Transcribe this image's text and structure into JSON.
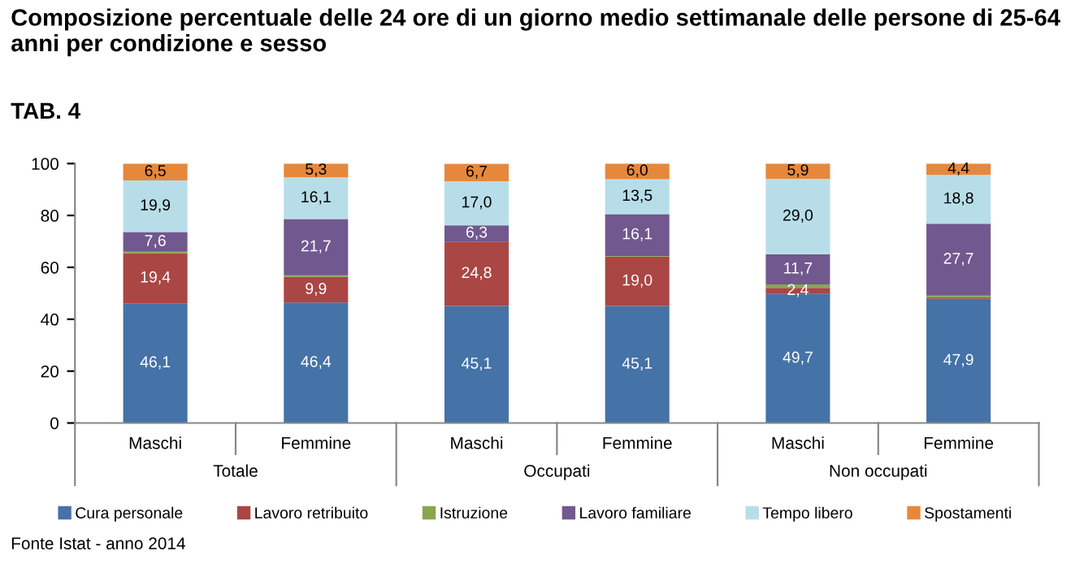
{
  "chart_data": {
    "type": "bar",
    "stacked": true,
    "title": "Composizione percentuale delle 24 ore di un giorno medio settimanale delle persone di 25-64 anni per condizione e sesso",
    "subtitle": "TAB. 4",
    "categories": [
      "Maschi",
      "Femmine",
      "Maschi",
      "Femmine",
      "Maschi",
      "Femmine"
    ],
    "series": [
      {
        "name": "Cura personale",
        "color": "#4572a7",
        "values": [
          46.1,
          46.4,
          45.1,
          45.1,
          49.7,
          47.9
        ],
        "value_labels": [
          "46,1",
          "46,4",
          "45,1",
          "45,1",
          "49,7",
          "47,9"
        ]
      },
      {
        "name": "Lavoro retribuito",
        "color": "#aa4643",
        "values": [
          19.4,
          9.9,
          24.8,
          19.0,
          2.4,
          0.6
        ],
        "value_labels": [
          "19,4",
          "9,9",
          "24,8",
          "19,0",
          "2,4",
          null
        ]
      },
      {
        "name": "Istruzione",
        "color": "#89a54e",
        "values": [
          0.5,
          0.6,
          null,
          0.3,
          1.3,
          0.6
        ],
        "value_labels": [
          null,
          null,
          null,
          null,
          null,
          null
        ]
      },
      {
        "name": "Lavoro familiare",
        "color": "#71588f",
        "values": [
          7.6,
          21.7,
          6.3,
          16.1,
          11.7,
          27.7
        ],
        "value_labels": [
          "7,6",
          "21,7",
          "6,3",
          "16,1",
          "11,7",
          "27,7"
        ]
      },
      {
        "name": "Tempo libero",
        "color": "#b7dee8",
        "values": [
          19.9,
          16.1,
          17.0,
          13.5,
          29.0,
          18.8
        ],
        "value_labels": [
          "19,9",
          "16,1",
          "17,0",
          "13,5",
          "29,0",
          "18,8"
        ]
      },
      {
        "name": "Spostamenti",
        "color": "#e6883c",
        "values": [
          6.5,
          5.3,
          6.7,
          6.0,
          5.9,
          4.4
        ],
        "value_labels": [
          "6,5",
          "5,3",
          "6,7",
          "6,0",
          "5,9",
          "4,4"
        ]
      }
    ],
    "ylim": [
      0,
      100
    ],
    "yticks": [
      0,
      20,
      40,
      60,
      80,
      100
    ],
    "grid": false,
    "legend": "bottom",
    "annotations": [
      "Totale",
      "Occupati",
      "Non occupati",
      "Fonte Istat - anno 2014"
    ]
  }
}
